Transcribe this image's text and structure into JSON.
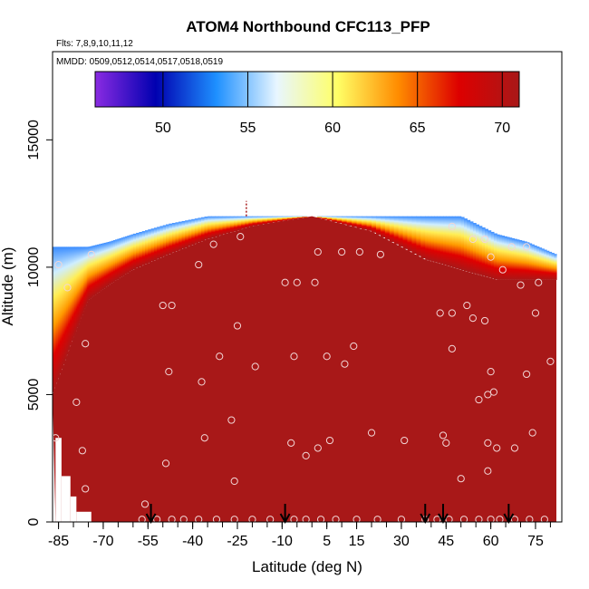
{
  "chart_data": {
    "type": "heatmap",
    "title": "ATOM4 Northbound CFC113_PFP",
    "flights_label": "Flts: 7,8,9,10,11,12",
    "dates_label": "MMDD: 0509,0512,0514,0517,0518,0519",
    "xlabel": "Latitude (deg N)",
    "ylabel": "Altitude (m)",
    "xlim": [
      -87,
      82
    ],
    "ylim": [
      0,
      18000
    ],
    "x_ticks": [
      -85,
      -70,
      -55,
      -40,
      -25,
      -10,
      5,
      15,
      30,
      45,
      60,
      75
    ],
    "x_tick_labels": [
      "-85",
      "-70",
      "-55",
      "-40",
      "-25",
      "-10",
      "5",
      "15",
      "30",
      "45",
      "60",
      "75"
    ],
    "y_ticks": [
      0,
      5000,
      10000,
      15000
    ],
    "y_tick_labels": [
      "0",
      "5000",
      "10000",
      "15000"
    ],
    "colorbar": {
      "range": [
        46,
        71
      ],
      "ticks": [
        50,
        55,
        60,
        65,
        70
      ],
      "tick_labels": [
        "50",
        "55",
        "60",
        "65",
        "70"
      ],
      "colors": [
        "#8a2be2",
        "#0000b0",
        "#1e90ff",
        "#e8f6ff",
        "#ffff66",
        "#ff8c00",
        "#dd0000",
        "#a81818"
      ]
    },
    "field_color": "#a81818",
    "field_value": 70.5,
    "field_top_altitude": 12000,
    "arrows_latitude": [
      -54,
      -9,
      38,
      44,
      66
    ],
    "observations": [
      {
        "x": -85,
        "y": 10100
      },
      {
        "x": -82,
        "y": 9200
      },
      {
        "x": -76,
        "y": 7000
      },
      {
        "x": -74,
        "y": 10500
      },
      {
        "x": -79,
        "y": 4700
      },
      {
        "x": -77,
        "y": 2800
      },
      {
        "x": -76,
        "y": 1300
      },
      {
        "x": -86,
        "y": 3300
      },
      {
        "x": -56,
        "y": 700
      },
      {
        "x": -50,
        "y": 8500
      },
      {
        "x": -47,
        "y": 8500
      },
      {
        "x": -48,
        "y": 5900
      },
      {
        "x": -49,
        "y": 2300
      },
      {
        "x": -38,
        "y": 10100
      },
      {
        "x": -33,
        "y": 10900
      },
      {
        "x": -37,
        "y": 5500
      },
      {
        "x": -36,
        "y": 3300
      },
      {
        "x": -31,
        "y": 6500
      },
      {
        "x": -24,
        "y": 11200
      },
      {
        "x": -25,
        "y": 7700
      },
      {
        "x": -27,
        "y": 4000
      },
      {
        "x": -26,
        "y": 1600
      },
      {
        "x": -19,
        "y": 6100
      },
      {
        "x": -9,
        "y": 9400
      },
      {
        "x": -5,
        "y": 9400
      },
      {
        "x": -6,
        "y": 6500
      },
      {
        "x": -7,
        "y": 3100
      },
      {
        "x": -2,
        "y": 2600
      },
      {
        "x": 1,
        "y": 9400
      },
      {
        "x": 2,
        "y": 10600
      },
      {
        "x": 2,
        "y": 2900
      },
      {
        "x": 6,
        "y": 3200
      },
      {
        "x": 5,
        "y": 6500
      },
      {
        "x": 10,
        "y": 10600
      },
      {
        "x": 11,
        "y": 6200
      },
      {
        "x": 14,
        "y": 6900
      },
      {
        "x": 16,
        "y": 10600
      },
      {
        "x": 23,
        "y": 10500
      },
      {
        "x": 20,
        "y": 3500
      },
      {
        "x": 31,
        "y": 3200
      },
      {
        "x": 43,
        "y": 8200
      },
      {
        "x": 47,
        "y": 8200
      },
      {
        "x": 47,
        "y": 6800
      },
      {
        "x": 44,
        "y": 3400
      },
      {
        "x": 45,
        "y": 3100
      },
      {
        "x": 50,
        "y": 1700
      },
      {
        "x": 52,
        "y": 8500
      },
      {
        "x": 54,
        "y": 8000
      },
      {
        "x": 56,
        "y": 4800
      },
      {
        "x": 58,
        "y": 7900
      },
      {
        "x": 59,
        "y": 3100
      },
      {
        "x": 59,
        "y": 2000
      },
      {
        "x": 59,
        "y": 5000
      },
      {
        "x": 61,
        "y": 5100
      },
      {
        "x": 60,
        "y": 5900
      },
      {
        "x": 62,
        "y": 2900
      },
      {
        "x": 60,
        "y": 10400
      },
      {
        "x": 64,
        "y": 9900
      },
      {
        "x": 67,
        "y": 10800
      },
      {
        "x": 68,
        "y": 2900
      },
      {
        "x": 72,
        "y": 5800
      },
      {
        "x": 70,
        "y": 9300
      },
      {
        "x": 74,
        "y": 3500
      },
      {
        "x": 75,
        "y": 8200
      },
      {
        "x": 76,
        "y": 9400
      },
      {
        "x": 80,
        "y": 6300
      },
      {
        "x": 47,
        "y": 11600
      },
      {
        "x": 54,
        "y": 11100
      },
      {
        "x": 72,
        "y": 10800
      },
      {
        "x": 58,
        "y": 11100
      }
    ],
    "surface_observations": [
      -57,
      -52,
      -47,
      -43,
      -38,
      -32,
      -26,
      -20,
      -14,
      -6,
      -2,
      3,
      8,
      15,
      22,
      30,
      38,
      42,
      46,
      51,
      56,
      60,
      63,
      68,
      73,
      78
    ],
    "upper_band": [
      {
        "x": -87,
        "top": 10800,
        "tran": 10200,
        "red": 8000,
        "solid": 5000
      },
      {
        "x": -80,
        "top": 10800,
        "tran": 10200,
        "red": 9000,
        "solid": 7200
      },
      {
        "x": -75,
        "top": 10800,
        "tran": 10400,
        "red": 9600,
        "solid": 8700
      },
      {
        "x": -68,
        "top": 11000,
        "tran": 10700,
        "red": 10000,
        "solid": 9300
      },
      {
        "x": -60,
        "top": 11300,
        "tran": 11000,
        "red": 10500,
        "solid": 9900
      },
      {
        "x": -48,
        "top": 11700,
        "tran": 11400,
        "red": 11000,
        "solid": 10500
      },
      {
        "x": -35,
        "top": 12000,
        "tran": 11800,
        "red": 11500,
        "solid": 11100
      },
      {
        "x": -20,
        "top": 12000,
        "tran": 12000,
        "red": 11900,
        "solid": 11600
      },
      {
        "x": 0,
        "top": 12000,
        "tran": 12000,
        "red": 12000,
        "solid": 12000
      },
      {
        "x": 20,
        "top": 12000,
        "tran": 12000,
        "red": 11900,
        "solid": 11400
      },
      {
        "x": 38,
        "top": 12000,
        "tran": 11800,
        "red": 11000,
        "solid": 10300
      },
      {
        "x": 50,
        "top": 12000,
        "tran": 11500,
        "red": 10600,
        "solid": 9900
      },
      {
        "x": 62,
        "top": 11300,
        "tran": 10900,
        "red": 10100,
        "solid": 9500
      },
      {
        "x": 72,
        "top": 11000,
        "tran": 10600,
        "red": 9900,
        "solid": 9500
      },
      {
        "x": 82,
        "top": 10500,
        "tran": 10200,
        "red": 9700,
        "solid": 9500
      }
    ]
  }
}
